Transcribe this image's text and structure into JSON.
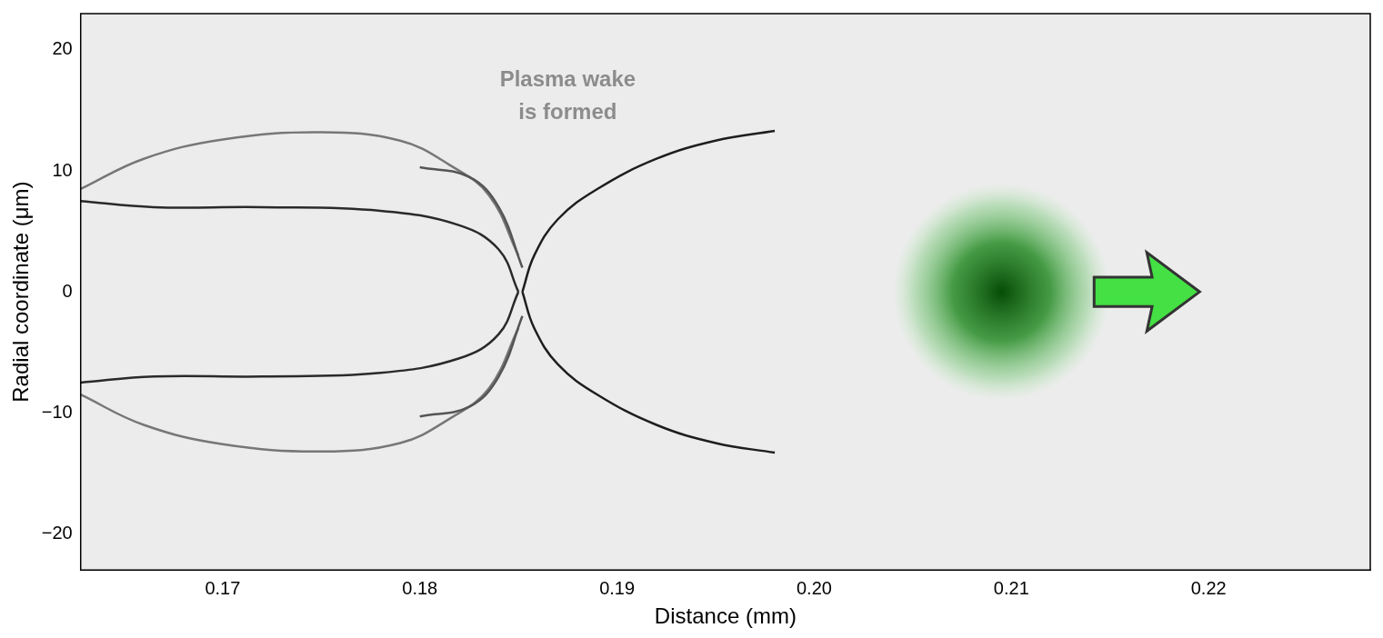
{
  "chart_data": {
    "type": "image",
    "xlabel": "Distance (mm)",
    "ylabel": "Radial coordinate (μm)",
    "xlim": [
      0.1628,
      0.2282
    ],
    "ylim": [
      -23,
      23
    ],
    "xticks": [
      0.17,
      0.18,
      0.19,
      {
        "value": 0.2,
        "label": "0.20"
      },
      0.21,
      0.22
    ],
    "yticks": [
      {
        "value": -20,
        "label": "−20"
      },
      {
        "value": -10,
        "label": "−10"
      },
      0,
      10,
      20
    ],
    "grid": false,
    "annotation": {
      "text": [
        "Plasma wake",
        "is formed"
      ],
      "x": 0.1875,
      "y": 17.5,
      "color": "#8c8c8c"
    },
    "laser": {
      "x": 0.2095,
      "y": 0,
      "radius": 9,
      "color": "#064d06"
    },
    "series": [
      {
        "x": [
          0.1852,
          0.1858,
          0.187,
          0.189,
          0.192,
          0.195,
          0.198
        ],
        "values": [
          0,
          3,
          6,
          8.5,
          11,
          12.5,
          13.3
        ],
        "color": "#1e1e1e"
      },
      {
        "x": [
          0.1852,
          0.1858,
          0.187,
          0.189,
          0.192,
          0.195,
          0.198
        ],
        "values": [
          0,
          -3,
          -6,
          -8.5,
          -11,
          -12.5,
          -13.3
        ],
        "color": "#1e1e1e"
      },
      {
        "x": [
          0.1852,
          0.184,
          0.1825,
          0.18
        ],
        "values": [
          2,
          7,
          9.5,
          10.3
        ],
        "color": "#555555"
      },
      {
        "x": [
          0.1852,
          0.184,
          0.1825,
          0.18
        ],
        "values": [
          -2,
          -7,
          -9.5,
          -10.3
        ],
        "color": "#555555"
      },
      {
        "x": [
          0.185,
          0.184,
          0.182,
          0.178,
          0.172,
          0.1665,
          0.1628
        ],
        "values": [
          0,
          3.5,
          5.5,
          6.7,
          7,
          7,
          7.5
        ],
        "color": "#2a2a2a"
      },
      {
        "x": [
          0.185,
          0.184,
          0.182,
          0.178,
          0.172,
          0.1665,
          0.1628
        ],
        "values": [
          0,
          -3.5,
          -5.5,
          -6.7,
          -7,
          -7,
          -7.5
        ],
        "color": "#2a2a2a"
      },
      {
        "x": [
          0.1628,
          0.166,
          0.17,
          0.175,
          0.179,
          0.1815,
          0.1835,
          0.185
        ],
        "values": [
          8.5,
          11,
          12.6,
          13.2,
          12.5,
          10.5,
          8,
          3
        ],
        "color": "#777777"
      },
      {
        "x": [
          0.1628,
          0.166,
          0.17,
          0.175,
          0.179,
          0.1815,
          0.1835,
          0.185
        ],
        "values": [
          -8.5,
          -11,
          -12.6,
          -13.2,
          -12.5,
          -10.5,
          -8,
          -3
        ],
        "color": "#777777"
      }
    ]
  }
}
